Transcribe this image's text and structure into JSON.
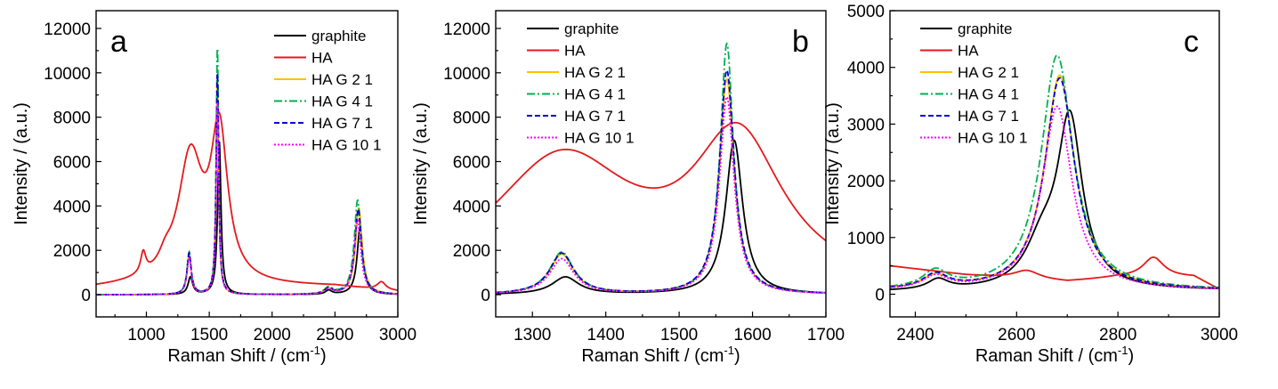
{
  "chart_data": [
    {
      "type": "line",
      "panel": "a",
      "xlabel": "Raman Shift / (cm",
      "xlabel_sup": "-1",
      "xlabel_end": ")",
      "ylabel": "Intensity / (a.u.)",
      "xlim": [
        600,
        3000
      ],
      "ylim": [
        -1000,
        12800
      ],
      "xticks": [
        1000,
        1500,
        2000,
        2500,
        3000
      ],
      "yticks": [
        0,
        2000,
        4000,
        6000,
        8000,
        10000,
        12000
      ],
      "xtick_labels": [
        "1000",
        "1500",
        "2000",
        "2500",
        "3000"
      ],
      "ytick_labels": [
        "0",
        "2000",
        "4000",
        "6000",
        "8000",
        "10000",
        "12000"
      ],
      "legend_position": "top-right",
      "series": [
        {
          "name": "graphite",
          "color": "#000000",
          "dash": "",
          "peaks": [
            [
              1350,
              780,
              22
            ],
            [
              1580,
              6900,
              16
            ],
            [
              2700,
              3050,
              28
            ],
            [
              2450,
              180,
              30
            ]
          ]
        },
        {
          "name": "HA",
          "color": "#e41a1c",
          "dash": "",
          "base": [
            [
              600,
              280
            ],
            [
              900,
              380
            ],
            [
              1500,
              420
            ],
            [
              1700,
              350
            ],
            [
              2500,
              350
            ],
            [
              3000,
              120
            ]
          ],
          "peaks": [
            [
              975,
              950,
              25
            ],
            [
              1150,
              500,
              60
            ],
            [
              1350,
              5600,
              120
            ],
            [
              1580,
              6600,
              80
            ],
            [
              2870,
              350,
              40
            ]
          ]
        },
        {
          "name": "HA G 2 1",
          "color": "#ffc000",
          "dash": "",
          "peaks": [
            [
              1340,
              1800,
              20
            ],
            [
              1565,
              9800,
              12
            ],
            [
              2690,
              3900,
              32
            ],
            [
              2450,
              250,
              40
            ]
          ]
        },
        {
          "name": "HA G 4 1",
          "color": "#00b050",
          "dash": "9,3,2,3",
          "peaks": [
            [
              1340,
              1900,
              20
            ],
            [
              1565,
              11300,
              11
            ],
            [
              2680,
              4250,
              32
            ],
            [
              2450,
              300,
              40
            ]
          ]
        },
        {
          "name": "HA G 7 1",
          "color": "#0000cc",
          "dash": "6,3",
          "peaks": [
            [
              1340,
              1850,
              20
            ],
            [
              1565,
              10100,
              12
            ],
            [
              2685,
              3850,
              32
            ],
            [
              2450,
              250,
              40
            ]
          ]
        },
        {
          "name": "HA G 10 1",
          "color": "#ff00ff",
          "dash": "2,2",
          "peaks": [
            [
              1340,
              1650,
              20
            ],
            [
              1565,
              8800,
              12
            ],
            [
              2680,
              3350,
              32
            ],
            [
              2450,
              220,
              40
            ]
          ]
        }
      ]
    },
    {
      "type": "line",
      "panel": "b",
      "xlabel": "Raman Shift / (cm",
      "xlabel_sup": "-1",
      "xlabel_end": ")",
      "ylabel": "Intensity / (a.u.)",
      "xlim": [
        1250,
        1700
      ],
      "ylim": [
        -1000,
        12800
      ],
      "xticks": [
        1300,
        1400,
        1500,
        1600,
        1700
      ],
      "yticks": [
        0,
        2000,
        4000,
        6000,
        8000,
        10000,
        12000
      ],
      "xtick_labels": [
        "1300",
        "1400",
        "1500",
        "1600",
        "1700"
      ],
      "ytick_labels": [
        "0",
        "2000",
        "4000",
        "6000",
        "8000",
        "10000",
        "12000"
      ],
      "legend_position": "top-left",
      "series": [
        {
          "name": "graphite",
          "color": "#000000",
          "dash": "",
          "peaks": [
            [
              1345,
              780,
              22
            ],
            [
              1575,
              6950,
              14
            ]
          ]
        },
        {
          "name": "HA",
          "color": "#e41a1c",
          "dash": "",
          "base": [
            [
              1250,
              0
            ],
            [
              1700,
              0
            ]
          ],
          "peaks": [
            [
              1340,
              5950,
              120
            ],
            [
              1580,
              6550,
              75
            ]
          ]
        },
        {
          "name": "HA G 2 1",
          "color": "#ffc000",
          "dash": "",
          "peaks": [
            [
              1340,
              1800,
              20
            ],
            [
              1565,
              9700,
              12
            ]
          ]
        },
        {
          "name": "HA G 4 1",
          "color": "#00b050",
          "dash": "9,3,2,3",
          "peaks": [
            [
              1340,
              1900,
              20
            ],
            [
              1565,
              11300,
              11
            ]
          ]
        },
        {
          "name": "HA G 7 1",
          "color": "#0000cc",
          "dash": "6,3",
          "peaks": [
            [
              1340,
              1850,
              20
            ],
            [
              1565,
              10100,
              12
            ]
          ]
        },
        {
          "name": "HA G 10 1",
          "color": "#ff00ff",
          "dash": "2,2",
          "peaks": [
            [
              1340,
              1600,
              20
            ],
            [
              1565,
              8900,
              12
            ]
          ]
        }
      ]
    },
    {
      "type": "line",
      "panel": "c",
      "xlabel": "Raman Shift / (cm",
      "xlabel_sup": "-1",
      "xlabel_end": ")",
      "ylabel": "Intensity / (a.u.)",
      "xlim": [
        2350,
        3000
      ],
      "ylim": [
        -400,
        5000
      ],
      "xticks": [
        2400,
        2600,
        2800,
        3000
      ],
      "yticks": [
        0,
        1000,
        2000,
        3000,
        4000,
        5000
      ],
      "xtick_labels": [
        "2400",
        "2600",
        "2800",
        "3000"
      ],
      "ytick_labels": [
        "0",
        "1000",
        "2000",
        "3000",
        "4000",
        "5000"
      ],
      "legend_position": "top-left",
      "series": [
        {
          "name": "graphite",
          "color": "#000000",
          "dash": "",
          "base": [
            [
              2350,
              40
            ],
            [
              3000,
              60
            ]
          ],
          "peaks": [
            [
              2705,
              2950,
              30
            ],
            [
              2650,
              700,
              40
            ],
            [
              2445,
              180,
              25
            ]
          ]
        },
        {
          "name": "HA",
          "color": "#e41a1c",
          "dash": "",
          "base": [
            [
              2350,
              500
            ],
            [
              2500,
              340
            ],
            [
              2700,
              220
            ],
            [
              2800,
              300
            ],
            [
              2950,
              300
            ],
            [
              3000,
              80
            ]
          ],
          "peaks": [
            [
              2620,
              150,
              30
            ],
            [
              2870,
              350,
              25
            ]
          ]
        },
        {
          "name": "HA G 2 1",
          "color": "#ffc000",
          "dash": "",
          "base": [
            [
              2350,
              60
            ],
            [
              3000,
              60
            ]
          ],
          "peaks": [
            [
              2685,
              3800,
              36
            ],
            [
              2440,
              230,
              30
            ]
          ]
        },
        {
          "name": "HA G 4 1",
          "color": "#00b050",
          "dash": "9,3,2,3",
          "base": [
            [
              2350,
              60
            ],
            [
              3000,
              60
            ]
          ],
          "peaks": [
            [
              2680,
              4150,
              38
            ],
            [
              2440,
              300,
              30
            ]
          ]
        },
        {
          "name": "HA G 7 1",
          "color": "#0000cc",
          "dash": "6,3",
          "base": [
            [
              2350,
              60
            ],
            [
              3000,
              60
            ]
          ],
          "peaks": [
            [
              2685,
              3750,
              36
            ],
            [
              2440,
              250,
              30
            ]
          ]
        },
        {
          "name": "HA G 10 1",
          "color": "#ff00ff",
          "dash": "2,2",
          "base": [
            [
              2350,
              60
            ],
            [
              3000,
              60
            ]
          ],
          "peaks": [
            [
              2680,
              3250,
              36
            ],
            [
              2440,
              220,
              30
            ]
          ]
        }
      ]
    }
  ]
}
